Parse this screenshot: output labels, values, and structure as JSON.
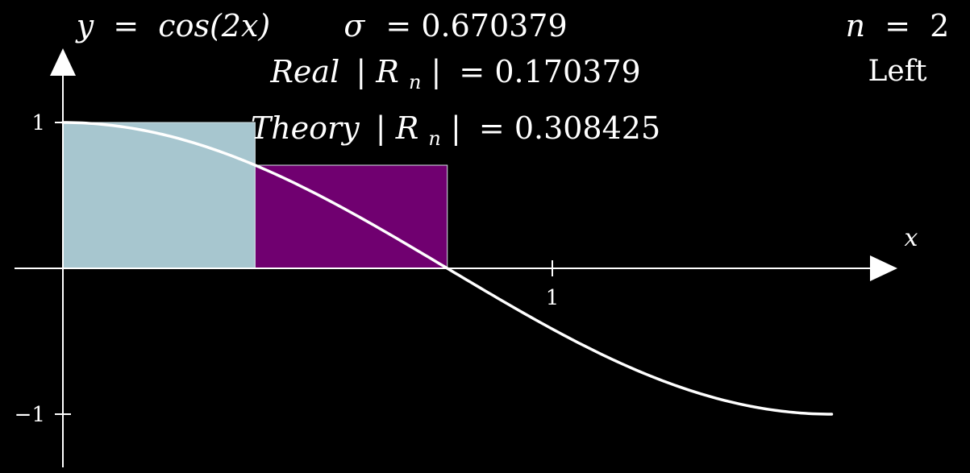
{
  "header": {
    "equation_lhs": "y",
    "equation_rhs": "cos(2x)",
    "sigma_symbol": "σ",
    "sigma_value": "0.670379",
    "real_label": "Real",
    "real_value": "0.170379",
    "theory_label": "Theory",
    "theory_value": "0.308425",
    "n_var": "n",
    "n_value": "2",
    "method": "Left",
    "eq_sign": "=",
    "r_symbol": "R",
    "r_subscript": "n"
  },
  "chart_data": {
    "type": "area",
    "function": "cos(2x)",
    "x_label": "x",
    "y_ticks": [
      {
        "value": 1,
        "label": "1"
      },
      {
        "value": -1,
        "label": "−1"
      }
    ],
    "x_ticks": [
      {
        "value": 1,
        "label": "1"
      }
    ],
    "xlim": [
      -0.1,
      1.72
    ],
    "ylim": [
      -1.25,
      1.35
    ],
    "curve_domain": [
      0,
      1.5708
    ],
    "integration_interval": [
      0,
      0.7854
    ],
    "n": 2,
    "rule": "Left",
    "rectangles": [
      {
        "x0": 0,
        "x1": 0.3927,
        "height": 1.0,
        "color": "#a7c6cf"
      },
      {
        "x0": 0.3927,
        "x1": 0.7854,
        "height": 0.7071,
        "color": "#700070"
      }
    ],
    "curve_color": "#ffffff",
    "axis_color": "#ffffff"
  }
}
